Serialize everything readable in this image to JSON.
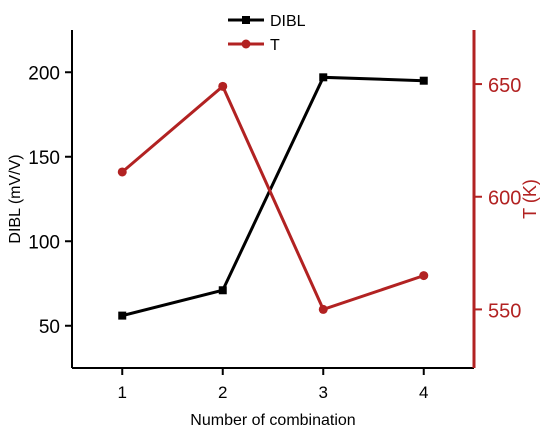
{
  "chart_data": {
    "type": "line",
    "categories": [
      "1",
      "2",
      "3",
      "4"
    ],
    "x": [
      1,
      2,
      3,
      4
    ],
    "xlabel": "Number of combination",
    "xlim": [
      0.5,
      4.5
    ],
    "y_left": {
      "label": "DIBL (mV/V)",
      "ylim": [
        25,
        225
      ],
      "ticks": [
        50,
        100,
        150,
        200
      ],
      "color": "#000000"
    },
    "y_right": {
      "label": "T (K)",
      "ylim": [
        524,
        674
      ],
      "ticks": [
        550,
        600,
        650
      ],
      "color": "#b22222"
    },
    "series": [
      {
        "name": "DIBL",
        "axis": "left",
        "values": [
          56,
          71,
          197,
          195
        ],
        "color": "#000000",
        "marker": "square"
      },
      {
        "name": "T",
        "axis": "right",
        "values": [
          611,
          649,
          550,
          565
        ],
        "color": "#b22222",
        "marker": "circle"
      }
    ],
    "legend_position": "top-center",
    "grid": false
  }
}
